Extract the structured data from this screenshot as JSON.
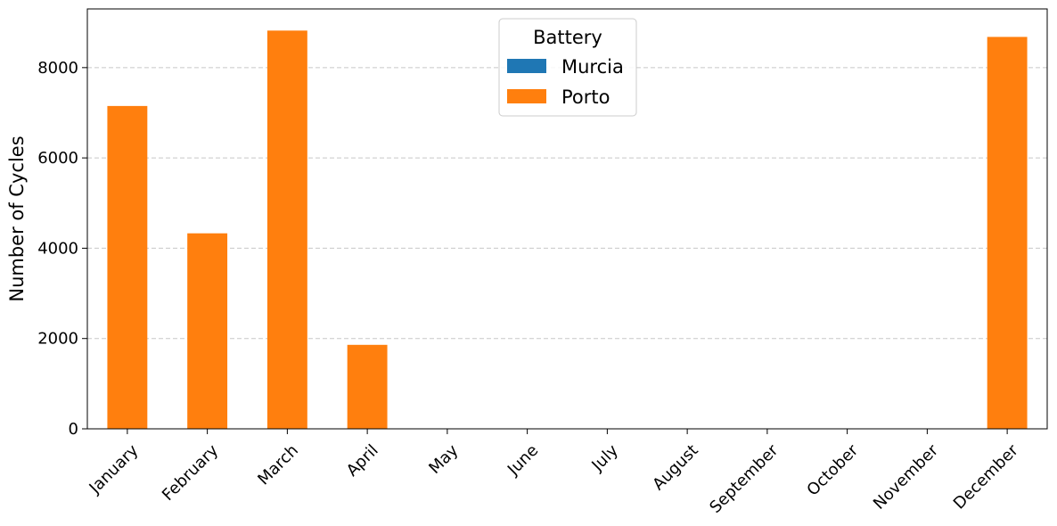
{
  "chart_data": {
    "type": "bar",
    "stacked": true,
    "title": "",
    "xlabel": "",
    "ylabel": "Number of Cycles",
    "categories": [
      "January",
      "February",
      "March",
      "April",
      "May",
      "June",
      "July",
      "August",
      "September",
      "October",
      "November",
      "December"
    ],
    "series": [
      {
        "name": "Murcia",
        "color": "#1f77b4",
        "values": [
          0,
          0,
          0,
          0,
          0,
          0,
          0,
          0,
          0,
          0,
          0,
          0
        ]
      },
      {
        "name": "Porto",
        "color": "#ff7f0e",
        "values": [
          7150,
          4330,
          8820,
          1860,
          0,
          0,
          0,
          0,
          0,
          0,
          0,
          8680
        ]
      }
    ],
    "ylim": [
      0,
      9300
    ],
    "yticks": [
      0,
      2000,
      4000,
      6000,
      8000
    ],
    "grid": "y-dashed",
    "legend": {
      "title": "Battery",
      "placement": "upper-center"
    }
  }
}
